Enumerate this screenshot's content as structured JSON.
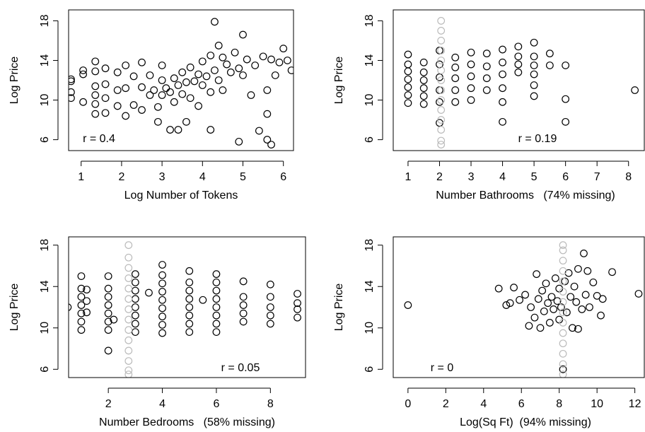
{
  "chart_data": [
    {
      "type": "scatter",
      "xlabel": "Log Number of Tokens",
      "ylabel": "Log Price",
      "annotation": "r = 0.4",
      "xlim": [
        0.69,
        6.25
      ],
      "ylim": [
        4.9,
        19.1
      ],
      "xticks": [
        1,
        2,
        3,
        4,
        5,
        6
      ],
      "yticks": [
        6,
        10,
        14,
        18
      ],
      "marker": "open-circle",
      "series": [
        {
          "color": "#000000",
          "x": [
            0.75,
            0.75,
            0.75,
            0.75,
            1.05,
            1.05,
            1.05,
            1.35,
            1.35,
            1.35,
            1.35,
            1.35,
            1.35,
            1.6,
            1.6,
            1.6,
            1.6,
            1.9,
            1.9,
            1.9,
            2.1,
            2.1,
            2.1,
            2.3,
            2.3,
            2.5,
            2.5,
            2.5,
            2.7,
            2.7,
            2.8,
            2.9,
            3,
            3,
            3,
            3.1,
            3.2,
            3.3,
            3.3,
            3.4,
            3.5,
            3.5,
            3.6,
            3.7,
            3.7,
            3.8,
            3.9,
            3.9,
            4,
            4,
            4.1,
            4.2,
            4.2,
            4.3,
            4.3,
            4.4,
            4.4,
            4.5,
            4.5,
            4.6,
            4.7,
            4.8,
            4.9,
            5,
            5,
            5.1,
            5.2,
            5.3,
            5.5,
            5.6,
            5.6,
            5.7,
            5.8,
            5.9,
            6,
            6.1,
            6.2,
            3.4,
            3.6,
            4.2,
            4.9,
            5.4,
            5.6,
            5.7,
            2.9,
            3.2
          ],
          "values": [
            10.2,
            10.8,
            11.9,
            12.1,
            9.8,
            12.6,
            13,
            8.6,
            9.6,
            10.5,
            11.4,
            12.9,
            13.9,
            8.7,
            10.2,
            11.6,
            13.2,
            9.4,
            11,
            12.8,
            8.4,
            11.2,
            13.5,
            9.5,
            12.4,
            9,
            11.3,
            13.8,
            10.5,
            12.5,
            11,
            9.3,
            10.5,
            12,
            13.5,
            11.2,
            10.8,
            12.2,
            9.8,
            11.5,
            10.6,
            12.8,
            11.8,
            10.2,
            13.3,
            11.9,
            12.6,
            9.4,
            11.5,
            13.9,
            12.4,
            14.5,
            10.8,
            13,
            17.9,
            15.5,
            12,
            14.3,
            11,
            13.6,
            12.8,
            14.8,
            13.2,
            16.6,
            12.5,
            14.1,
            10.5,
            13.5,
            14.4,
            11,
            8.6,
            14.1,
            12.5,
            13.8,
            15.2,
            14,
            13,
            7,
            7.8,
            7,
            5.8,
            6.9,
            6,
            5.5,
            7.8,
            7
          ]
        }
      ]
    },
    {
      "type": "scatter",
      "xlabel": "Number Bathrooms   (74% missing)",
      "ylabel": "Log Price",
      "annotation": "r = 0.19",
      "xlim": [
        0.53,
        8.5
      ],
      "ylim": [
        4.9,
        19.1
      ],
      "xticks": [
        1,
        2,
        3,
        4,
        5,
        6,
        7,
        8
      ],
      "yticks": [
        6,
        10,
        14,
        18
      ],
      "marker": "open-circle",
      "series": [
        {
          "color": "#000000",
          "x": [
            1,
            1,
            1,
            1,
            1,
            1,
            1,
            1.5,
            1.5,
            1.5,
            1.5,
            1.5,
            1.5,
            2,
            2,
            2,
            2,
            2,
            2,
            2.5,
            2.5,
            2.5,
            2.5,
            2.5,
            3,
            3,
            3,
            3,
            3,
            3.5,
            3.5,
            3.5,
            3.5,
            4,
            4,
            4,
            4,
            4,
            4,
            4.5,
            4.5,
            4.5,
            4.5,
            5,
            5,
            5,
            5,
            5,
            5,
            5.5,
            5.5,
            6,
            6,
            6,
            8.2
          ],
          "values": [
            9.7,
            10.5,
            11.3,
            12.1,
            12.9,
            13.6,
            14.6,
            9.6,
            10.4,
            11.2,
            12,
            12.8,
            13.8,
            7.7,
            9.8,
            11,
            12.3,
            13.6,
            15,
            9.8,
            11,
            12.2,
            13.3,
            14.3,
            10,
            11.2,
            12.4,
            13.6,
            14.8,
            11,
            12.2,
            13.4,
            14.7,
            7.8,
            9.8,
            11.2,
            12.6,
            13.8,
            15.1,
            12.8,
            13.6,
            14.4,
            15.4,
            10.4,
            11.5,
            12.6,
            13.5,
            14.4,
            15.8,
            13.5,
            14.7,
            7.8,
            10.1,
            13.5,
            11
          ]
        },
        {
          "color": "#bbbbbb",
          "x": [
            2.05,
            2.05,
            2.05,
            2.05,
            2.05,
            2.05,
            2.05,
            2.05,
            2.05,
            2.05,
            2.05,
            2.05,
            2.05,
            2.05
          ],
          "values": [
            5.5,
            5.9,
            7,
            8,
            9,
            10,
            11,
            12,
            13,
            14,
            15,
            16,
            17,
            18
          ]
        }
      ]
    },
    {
      "type": "scatter",
      "xlabel": "Number Bedrooms   (58% missing)",
      "ylabel": "Log Price",
      "annotation": "r = 0.05",
      "xlim": [
        0.53,
        9.3
      ],
      "ylim": [
        5.2,
        18.8
      ],
      "xticks": [
        2,
        4,
        6,
        8
      ],
      "yticks": [
        6,
        10,
        14,
        18
      ],
      "marker": "open-circle",
      "series": [
        {
          "color": "#000000",
          "x": [
            0.5,
            1,
            1,
            1,
            1,
            1,
            1,
            1,
            1.2,
            1.2,
            1.2,
            2,
            2,
            2,
            2,
            2,
            2,
            2,
            2,
            2.2,
            3,
            3,
            3,
            3,
            3,
            3,
            3,
            3,
            3.5,
            4,
            4,
            4,
            4,
            4,
            4,
            4,
            4,
            4,
            5,
            5,
            5,
            5,
            5,
            5,
            5,
            5,
            5.5,
            6,
            6,
            6,
            6,
            6,
            6,
            6,
            6,
            7,
            7,
            7,
            7,
            7,
            8,
            8,
            8,
            8,
            8,
            9,
            9,
            9,
            9
          ],
          "values": [
            12,
            9.8,
            10.6,
            11.4,
            12.2,
            13,
            13.8,
            15,
            11.5,
            12.6,
            13.7,
            7.8,
            9.8,
            10.6,
            11.4,
            12.2,
            13,
            13.8,
            15,
            10.8,
            9.6,
            10.4,
            11.2,
            12,
            12.8,
            13.6,
            14.4,
            15.2,
            13.4,
            9.5,
            10.3,
            11.1,
            11.9,
            12.7,
            13.5,
            14.3,
            15.1,
            16.1,
            9.6,
            10.4,
            11.2,
            12,
            12.8,
            13.6,
            14.4,
            15.5,
            12.7,
            9.6,
            10.4,
            11.2,
            12,
            12.8,
            13.6,
            14.4,
            15.2,
            10.6,
            11.4,
            12.2,
            13,
            14.5,
            10.4,
            11.2,
            12,
            13,
            14.2,
            11,
            11.8,
            12.4,
            13.3
          ]
        },
        {
          "color": "#bbbbbb",
          "x": [
            2.75,
            2.75,
            2.75,
            2.75,
            2.75,
            2.75,
            2.75,
            2.75,
            2.75,
            2.75,
            2.75,
            2.75,
            2.75,
            2.75
          ],
          "values": [
            5.5,
            5.9,
            6.8,
            7.8,
            8.8,
            9.8,
            10.8,
            11.8,
            12.8,
            13.8,
            14.8,
            15.8,
            16.8,
            18
          ]
        }
      ]
    },
    {
      "type": "scatter",
      "xlabel": "Log(Sq Ft)  (94% missing)",
      "ylabel": "Log Price",
      "annotation": "r = 0",
      "xlim": [
        -0.78,
        12.5
      ],
      "ylim": [
        5.2,
        18.8
      ],
      "xticks": [
        0,
        2,
        4,
        6,
        8,
        10,
        12
      ],
      "yticks": [
        6,
        10,
        14,
        18
      ],
      "marker": "open-circle",
      "series": [
        {
          "color": "#000000",
          "x": [
            0,
            4.8,
            5.2,
            5.4,
            5.6,
            5.9,
            6.2,
            6.4,
            6.5,
            6.7,
            6.8,
            6.9,
            7,
            7.1,
            7.2,
            7.3,
            7.4,
            7.5,
            7.6,
            7.7,
            7.8,
            7.9,
            8,
            8,
            8.1,
            8.3,
            8.4,
            8.5,
            8.6,
            8.7,
            8.8,
            8.9,
            9,
            9,
            9.2,
            9.3,
            9.4,
            9.5,
            9.6,
            9.8,
            10,
            10.2,
            10.3,
            10.8,
            12.2,
            8.2
          ],
          "values": [
            12.2,
            13.8,
            12.2,
            12.4,
            13.9,
            12.7,
            13.2,
            10.2,
            12,
            11,
            15.2,
            12.8,
            10,
            13.6,
            11.6,
            14.3,
            12.4,
            10.5,
            13,
            11.8,
            14.8,
            12.6,
            10.8,
            13.8,
            12,
            14.5,
            11.5,
            15.3,
            13,
            10,
            14,
            12.5,
            15.7,
            9.9,
            11.8,
            17.2,
            13.2,
            15.5,
            12,
            14.4,
            13.1,
            11.2,
            12.8,
            15.4,
            13.3,
            6
          ]
        },
        {
          "color": "#bbbbbb",
          "x": [
            8.2,
            8.2,
            8.2,
            8.2,
            8.2,
            8.2,
            8.2,
            8.2,
            8.2,
            8.2,
            8.2,
            8.2,
            8.2,
            8.2
          ],
          "values": [
            5.5,
            6.5,
            7.5,
            8.5,
            9.5,
            10.5,
            11.5,
            12.5,
            13.5,
            14.5,
            15.5,
            16.5,
            17.5,
            18
          ]
        }
      ]
    }
  ]
}
